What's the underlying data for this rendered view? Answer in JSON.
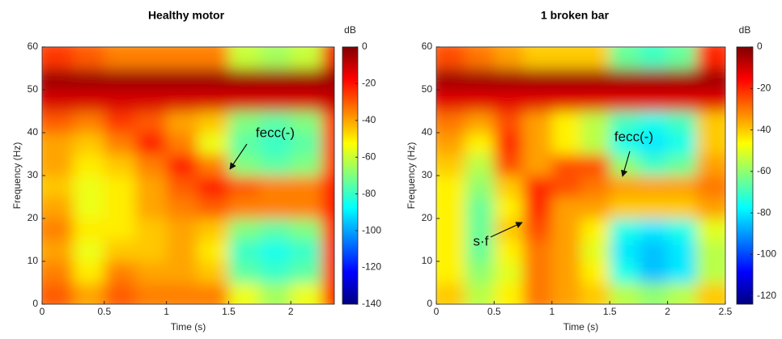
{
  "chart_data": [
    {
      "type": "heatmap",
      "title": "Healthy motor",
      "x_label": "Time (s)",
      "y_label": "Frequency (Hz)",
      "colorbar_label": "dB",
      "xlim": [
        0,
        2.35
      ],
      "xticks": [
        0,
        0.5,
        1,
        1.5,
        2
      ],
      "ylim": [
        0,
        60
      ],
      "yticks": [
        0,
        10,
        20,
        30,
        40,
        50,
        60
      ],
      "clim": [
        -140,
        0
      ],
      "cticks": [
        0,
        -20,
        -40,
        -60,
        -80,
        -100,
        -120,
        -140
      ],
      "colormap": "jet",
      "x": [
        0.125,
        0.375,
        0.625,
        0.875,
        1.125,
        1.375,
        1.625,
        1.875,
        2.125,
        2.375
      ],
      "y": [
        2.5,
        7.5,
        12.5,
        17.5,
        22.5,
        27.5,
        32.5,
        37.5,
        42.5,
        47.5,
        52.5,
        57.5
      ],
      "z": [
        [
          -30,
          -40,
          -30,
          -35,
          -35,
          -35,
          -55,
          -65,
          -55,
          -20
        ],
        [
          -35,
          -50,
          -35,
          -40,
          -40,
          -45,
          -75,
          -80,
          -75,
          -20
        ],
        [
          -40,
          -55,
          -45,
          -45,
          -40,
          -50,
          -80,
          -85,
          -80,
          -20
        ],
        [
          -35,
          -50,
          -50,
          -45,
          -40,
          -45,
          -70,
          -75,
          -70,
          -20
        ],
        [
          -40,
          -55,
          -50,
          -40,
          -35,
          -30,
          -35,
          -35,
          -35,
          -20
        ],
        [
          -45,
          -55,
          -50,
          -40,
          -30,
          -20,
          -30,
          -35,
          -35,
          -20
        ],
        [
          -40,
          -50,
          -45,
          -35,
          -20,
          -35,
          -70,
          -75,
          -70,
          -25
        ],
        [
          -40,
          -45,
          -35,
          -20,
          -35,
          -55,
          -75,
          -80,
          -75,
          -25
        ],
        [
          -30,
          -35,
          -25,
          -30,
          -40,
          -45,
          -70,
          -75,
          -70,
          -25
        ],
        [
          -12,
          -12,
          -12,
          -12,
          -12,
          -12,
          -12,
          -12,
          -12,
          -10
        ],
        [
          -4,
          -4,
          -4,
          -4,
          -4,
          -4,
          -4,
          -4,
          -4,
          -4
        ],
        [
          -25,
          -30,
          -35,
          -35,
          -35,
          -35,
          -60,
          -65,
          -60,
          -15
        ]
      ],
      "annotations": [
        {
          "text": "fecc(-)"
        }
      ]
    },
    {
      "type": "heatmap",
      "title": "1 broken bar",
      "x_label": "Time (s)",
      "y_label": "Frequency (Hz)",
      "colorbar_label": "dB",
      "xlim": [
        0,
        2.5
      ],
      "xticks": [
        0,
        0.5,
        1,
        1.5,
        2,
        2.5
      ],
      "ylim": [
        0,
        60
      ],
      "yticks": [
        0,
        10,
        20,
        30,
        40,
        50,
        60
      ],
      "clim": [
        -124,
        0
      ],
      "cticks": [
        0,
        -20,
        -40,
        -60,
        -80,
        -100,
        -120
      ],
      "colormap": "jet",
      "x": [
        0.125,
        0.375,
        0.625,
        0.875,
        1.125,
        1.375,
        1.625,
        1.875,
        2.125,
        2.375
      ],
      "y": [
        2.5,
        7.5,
        12.5,
        17.5,
        22.5,
        27.5,
        32.5,
        37.5,
        42.5,
        47.5,
        52.5,
        57.5
      ],
      "z": [
        [
          -40,
          -55,
          -45,
          -30,
          -35,
          -40,
          -55,
          -60,
          -55,
          -40
        ],
        [
          -45,
          -60,
          -50,
          -30,
          -35,
          -45,
          -75,
          -85,
          -80,
          -55
        ],
        [
          -45,
          -65,
          -45,
          -30,
          -35,
          -50,
          -80,
          -85,
          -80,
          -55
        ],
        [
          -45,
          -65,
          -40,
          -25,
          -35,
          -45,
          -75,
          -80,
          -75,
          -50
        ],
        [
          -45,
          -65,
          -45,
          -20,
          -35,
          -35,
          -40,
          -40,
          -40,
          -35
        ],
        [
          -45,
          -60,
          -40,
          -20,
          -25,
          -30,
          -35,
          -35,
          -35,
          -30
        ],
        [
          -40,
          -55,
          -25,
          -35,
          -25,
          -25,
          -60,
          -70,
          -65,
          -35
        ],
        [
          -35,
          -45,
          -20,
          -35,
          -45,
          -55,
          -75,
          -80,
          -75,
          -40
        ],
        [
          -30,
          -35,
          -25,
          -35,
          -45,
          -55,
          -70,
          -75,
          -70,
          -40
        ],
        [
          -12,
          -12,
          -12,
          -12,
          -12,
          -12,
          -12,
          -12,
          -12,
          -12
        ],
        [
          -4,
          -4,
          -4,
          -4,
          -4,
          -4,
          -4,
          -4,
          -4,
          -4
        ],
        [
          -25,
          -30,
          -35,
          -40,
          -40,
          -40,
          -65,
          -70,
          -65,
          -20
        ]
      ],
      "annotations": [
        {
          "text": "fecc(-)"
        },
        {
          "text": "s·f"
        }
      ]
    }
  ]
}
